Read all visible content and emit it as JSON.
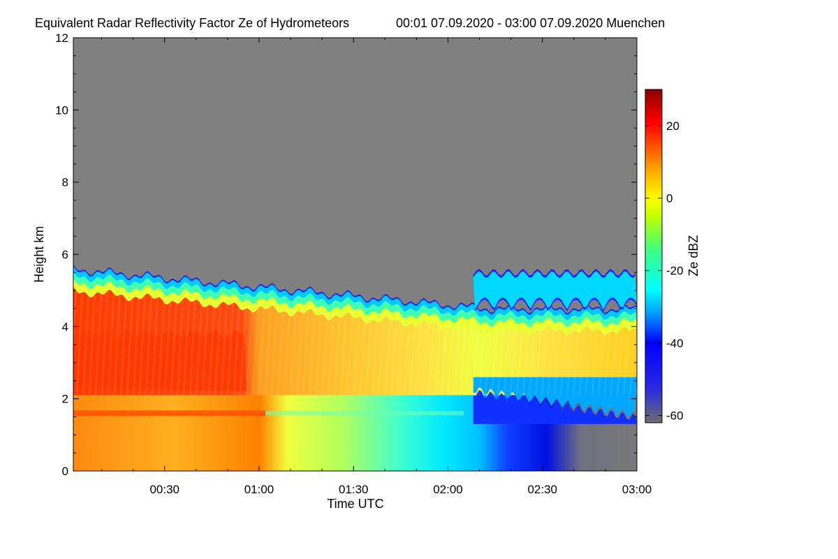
{
  "chart_data": {
    "type": "heatmap",
    "title": "Equivalent Radar Reflectivity Factor Ze of Hydrometeors",
    "subtitle": "00:01 07.09.2020 - 03:00 07.09.2020 Muenchen",
    "xlabel": "Time UTC",
    "ylabel": "Height km",
    "xlim": [
      "00:01",
      "03:00"
    ],
    "x_ticks": [
      "00:30",
      "01:00",
      "01:30",
      "02:00",
      "02:30",
      "03:00"
    ],
    "y_ticks": [
      0,
      2,
      4,
      6,
      8,
      10,
      12
    ],
    "ylim": [
      0,
      12
    ],
    "no_data_color": "#808080",
    "colorbar": {
      "label": "Ze dBZ",
      "range": [
        -62,
        30
      ],
      "ticks": [
        20,
        0,
        -20,
        -40,
        -60
      ]
    },
    "echo_layers": [
      {
        "name": "main_precip",
        "time_start": "00:01",
        "time_end": "03:00",
        "top_km_start": 5.6,
        "top_km_end": 4.5
      },
      {
        "name": "upper_cloud",
        "time_start": "02:08",
        "time_end": "03:00",
        "base_km": 4.4,
        "top_km": 5.5
      }
    ],
    "bright_band_km": 1.6
  }
}
